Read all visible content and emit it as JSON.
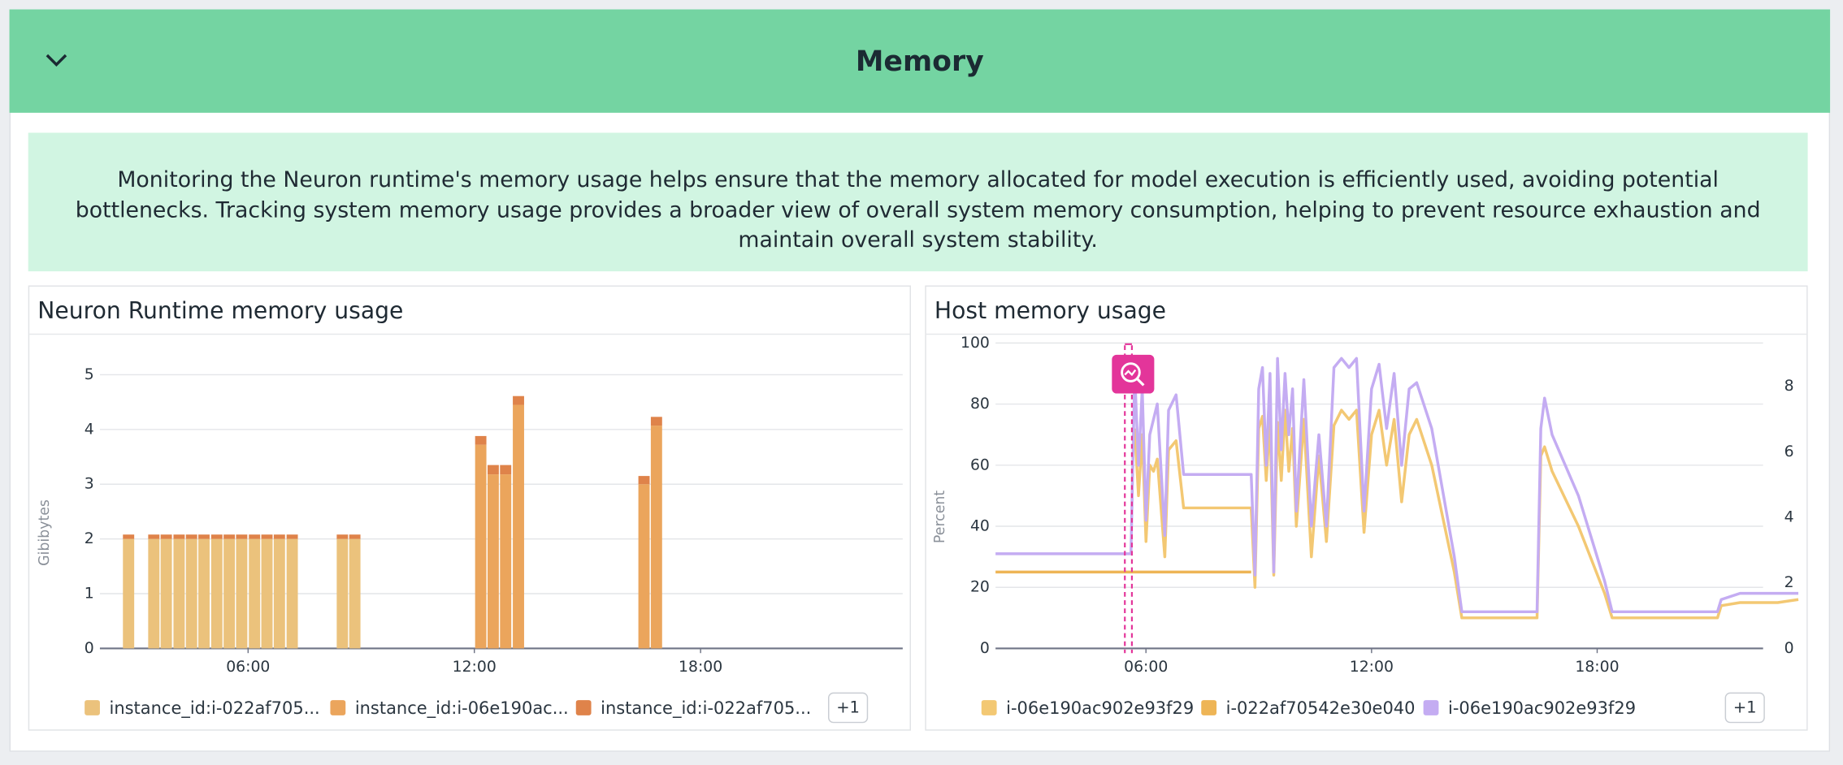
{
  "header": {
    "title": "Memory"
  },
  "description": {
    "text": "Monitoring the Neuron runtime's memory usage helps ensure that the memory allocated for model execution is efficiently used, avoiding potential bottlenecks. Tracking system memory usage provides a broader view of overall system memory consumption, helping to prevent resource exhaustion and maintain overall system stability."
  },
  "chart_data": [
    {
      "type": "bar",
      "stacked": true,
      "title": "Neuron Runtime memory usage",
      "y_label": "Gibibytes",
      "x": [
        2.83,
        3.5,
        3.83,
        4.17,
        4.5,
        4.83,
        5.17,
        5.5,
        5.83,
        6.17,
        6.5,
        6.83,
        7.17,
        8.5,
        8.83,
        12.17,
        12.5,
        12.83,
        13.17,
        16.5,
        16.83
      ],
      "xlim": [
        2.07,
        23.36
      ],
      "xticks": [
        {
          "value": 6,
          "label": "06:00"
        },
        {
          "value": 12,
          "label": "12:00"
        },
        {
          "value": 18,
          "label": "18:00"
        }
      ],
      "ylim": [
        0,
        5
      ],
      "yticks": [
        0,
        1,
        2,
        3,
        4,
        5
      ],
      "grid": true,
      "series": [
        {
          "name": "instance_id:i-022af705...",
          "color": "#ebc27c",
          "values": [
            2.0,
            2.0,
            2.0,
            2.0,
            2.0,
            2.0,
            2.0,
            2.0,
            2.0,
            2.0,
            2.0,
            2.0,
            2.0,
            2.0,
            2.0,
            null,
            null,
            null,
            null,
            null,
            null
          ]
        },
        {
          "name": "instance_id:i-06e190ac...",
          "color": "#eba55c",
          "values": [
            null,
            null,
            null,
            null,
            null,
            null,
            null,
            null,
            null,
            null,
            null,
            null,
            null,
            null,
            null,
            3.72,
            3.18,
            3.18,
            4.45,
            3.0,
            4.07
          ]
        },
        {
          "name": "instance_id:i-022af705...",
          "color": "#df834a",
          "values": [
            0.08,
            0.08,
            0.08,
            0.08,
            0.08,
            0.08,
            0.08,
            0.08,
            0.08,
            0.08,
            0.08,
            0.08,
            0.08,
            0.08,
            0.08,
            0.16,
            0.17,
            0.17,
            0.16,
            0.15,
            0.16
          ]
        }
      ],
      "legend_more": "+1"
    },
    {
      "type": "line",
      "title": "Host memory usage",
      "y_label": "Percent",
      "x": [
        2,
        5.6,
        5.7,
        5.8,
        5.9,
        6.0,
        6.1,
        6.2,
        6.3,
        6.5,
        6.6,
        6.8,
        7.0,
        8.8,
        8.9,
        9.0,
        9.1,
        9.2,
        9.3,
        9.4,
        9.5,
        9.6,
        9.7,
        9.8,
        9.9,
        10.0,
        10.2,
        10.4,
        10.6,
        10.8,
        11.0,
        11.2,
        11.4,
        11.6,
        11.8,
        12.0,
        12.2,
        12.4,
        12.6,
        12.8,
        13.0,
        13.2,
        13.6,
        14.2,
        14.4,
        15.8,
        16.4,
        16.5,
        16.6,
        16.8,
        17.5,
        18.2,
        18.4,
        20.4,
        21.2,
        21.3,
        21.8,
        22.8,
        23.35
      ],
      "xlim": [
        2,
        23.35
      ],
      "xticks": [
        {
          "value": 6,
          "label": "06:00"
        },
        {
          "value": 12,
          "label": "12:00"
        },
        {
          "value": 18,
          "label": "18:00"
        }
      ],
      "ylim": [
        0,
        100
      ],
      "yticks": [
        0,
        20,
        40,
        60,
        80,
        100
      ],
      "y2lim": [
        0,
        9.32
      ],
      "y2ticks": [
        0,
        2,
        4,
        6,
        8
      ],
      "grid": true,
      "series": [
        {
          "name": "i-06e190ac902e93f29",
          "color": "#f3c873",
          "values": [
            null,
            null,
            72,
            50,
            70,
            35,
            60,
            58,
            62,
            30,
            65,
            68,
            46,
            46,
            20,
            72,
            76,
            55,
            75,
            24,
            74,
            55,
            78,
            58,
            72,
            40,
            75,
            30,
            63,
            35,
            73,
            78,
            75,
            78,
            38,
            70,
            78,
            60,
            75,
            48,
            70,
            75,
            60,
            25,
            10,
            10,
            10,
            63,
            66,
            58,
            40,
            18,
            10,
            10,
            10,
            14,
            15,
            15,
            16
          ]
        },
        {
          "name": "i-022af70542e30e040",
          "color": "#eeb556",
          "values": [
            25,
            25,
            25,
            25,
            25,
            25,
            25,
            25,
            25,
            25,
            25,
            25,
            25,
            25,
            null,
            null,
            null,
            null,
            null,
            null,
            null,
            null,
            null,
            null,
            null,
            null,
            null,
            null,
            null,
            null,
            null,
            null,
            null,
            null,
            null,
            null,
            null,
            null,
            null,
            null,
            null,
            null,
            null,
            null,
            null,
            null,
            null,
            null,
            null,
            null,
            null,
            null,
            null,
            null,
            null,
            null,
            null,
            null,
            null
          ]
        },
        {
          "name": "i-06e190ac902e93f29",
          "color": "#c4acf2",
          "axis": "y2",
          "values": [
            2.89,
            2.89,
            8.39,
            5.59,
            7.92,
            3.91,
            6.52,
            6.99,
            7.46,
            3.45,
            7.27,
            7.74,
            5.31,
            5.31,
            2.24,
            7.92,
            8.57,
            5.59,
            8.39,
            2.33,
            8.85,
            6.06,
            8.39,
            6.52,
            7.92,
            4.19,
            8.2,
            3.73,
            6.52,
            3.73,
            8.57,
            8.85,
            8.57,
            8.85,
            4.19,
            7.92,
            8.67,
            6.71,
            8.39,
            5.59,
            7.92,
            8.11,
            6.71,
            2.8,
            1.12,
            1.12,
            1.12,
            6.71,
            7.64,
            6.52,
            4.66,
            2.05,
            1.12,
            1.12,
            1.12,
            1.49,
            1.68,
            1.68,
            1.68
          ]
        }
      ],
      "legend_more": "+1"
    }
  ]
}
